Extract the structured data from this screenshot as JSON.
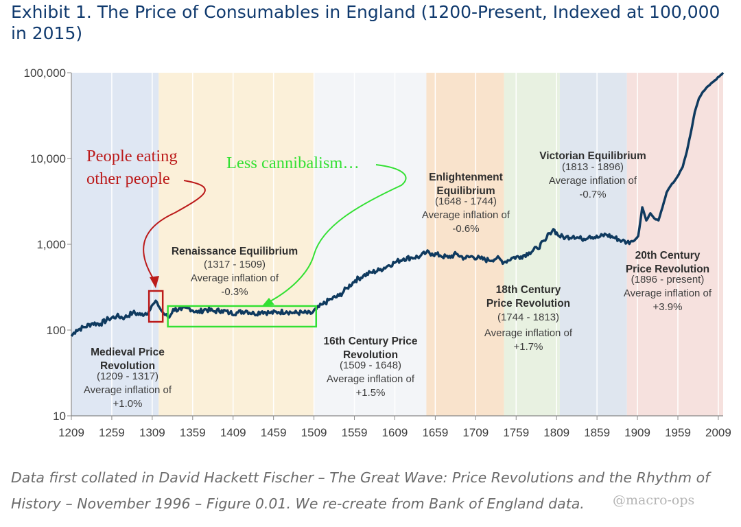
{
  "title": "Exhibit 1. The Price of Consumables in England (1200-Present, Indexed at 100,000 in 2015)",
  "caption": "Data first collated in David Hackett Fischer – The Great Wave: Price Revolutions and the Rhythm of History – November 1996 – Figure 0.01. We re-create from Bank of England data.",
  "watermark": "@macro-ops",
  "colors": {
    "line": "#0f3a5f",
    "annotation_red": "#bb1a1a",
    "annotation_green": "#33e033",
    "title": "#103a6e"
  },
  "chart_data": {
    "type": "line",
    "title": "",
    "xlabel": "",
    "ylabel": "",
    "yscale": "log",
    "xlim": [
      1209,
      2015
    ],
    "ylim": [
      10,
      100000
    ],
    "x_ticks": [
      "1209",
      "1259",
      "1309",
      "1359",
      "1409",
      "1459",
      "1509",
      "1559",
      "1609",
      "1659",
      "1709",
      "1759",
      "1809",
      "1859",
      "1909",
      "1959",
      "2009"
    ],
    "y_ticks": [
      "100,000",
      "10,000",
      "1,000",
      "100",
      "10"
    ],
    "series": [
      {
        "x": [
          1209,
          1215,
          1225,
          1235,
          1245,
          1255,
          1265,
          1275,
          1285,
          1295,
          1305,
          1310,
          1315,
          1320,
          1325,
          1330,
          1335,
          1345,
          1355,
          1365,
          1375,
          1385,
          1395,
          1405,
          1415,
          1425,
          1435,
          1445,
          1455,
          1465,
          1475,
          1485,
          1495,
          1505,
          1512,
          1520,
          1530,
          1540,
          1550,
          1560,
          1570,
          1580,
          1590,
          1600,
          1610,
          1620,
          1630,
          1640,
          1648,
          1655,
          1665,
          1675,
          1685,
          1695,
          1705,
          1715,
          1725,
          1735,
          1744,
          1755,
          1765,
          1775,
          1785,
          1795,
          1800,
          1805,
          1812,
          1820,
          1830,
          1840,
          1850,
          1860,
          1870,
          1880,
          1890,
          1896,
          1905,
          1910,
          1915,
          1920,
          1925,
          1930,
          1935,
          1940,
          1945,
          1950,
          1955,
          1960,
          1965,
          1970,
          1975,
          1980,
          1985,
          1990,
          1995,
          2000,
          2005,
          2010,
          2015
        ],
        "values": [
          85,
          100,
          108,
          120,
          118,
          135,
          145,
          140,
          160,
          150,
          165,
          200,
          210,
          170,
          150,
          140,
          175,
          172,
          180,
          160,
          175,
          165,
          170,
          158,
          160,
          168,
          155,
          165,
          158,
          162,
          165,
          158,
          160,
          155,
          175,
          200,
          230,
          250,
          310,
          380,
          430,
          470,
          500,
          560,
          620,
          680,
          700,
          720,
          800,
          780,
          740,
          700,
          770,
          690,
          720,
          680,
          650,
          690,
          620,
          700,
          720,
          800,
          900,
          1100,
          1350,
          1500,
          1250,
          1200,
          1250,
          1150,
          1250,
          1200,
          1300,
          1200,
          1100,
          1050,
          1100,
          1250,
          2700,
          1900,
          2300,
          2000,
          1900,
          2700,
          4000,
          4800,
          5500,
          6500,
          8000,
          12000,
          20000,
          35000,
          50000,
          60000,
          68000,
          75000,
          82000,
          90000,
          100000
        ]
      }
    ],
    "eras": [
      {
        "name": "Medieval Price Revolution",
        "years": "(1209 - 1317)",
        "inflation": "Average inflation of +1.0%",
        "start": 1209,
        "end": 1317,
        "color": "#dfe7f3"
      },
      {
        "name": "Renaissance Equilibrium",
        "years": "(1317 - 1509)",
        "inflation": "Average inflation of -0.3%",
        "start": 1317,
        "end": 1509,
        "color": "#fbf0d9"
      },
      {
        "name": "16th Century Price Revolution",
        "years": "(1509 - 1648)",
        "inflation": "Average inflation of +1.5%",
        "start": 1509,
        "end": 1648,
        "color": "#f3f5f8"
      },
      {
        "name": "Enlightenment Equilibrium",
        "years": "(1648 - 1744)",
        "inflation": "Average inflation of -0.6%",
        "start": 1648,
        "end": 1744,
        "color": "#f9e3cc"
      },
      {
        "name": "18th Century Price Revolution",
        "years": "(1744 - 1813)",
        "inflation": "Average inflation of +1.7%",
        "start": 1744,
        "end": 1813,
        "color": "#e8f1e1"
      },
      {
        "name": "Victorian Equilibrium",
        "years": "(1813 - 1896)",
        "inflation": "Average inflation of -0.7%",
        "start": 1813,
        "end": 1896,
        "color": "#dfe6ef"
      },
      {
        "name": "20th Century Price Revolution",
        "years": "(1896 - present)",
        "inflation": "Average inflation of +3.9%",
        "start": 1896,
        "end": 2015,
        "color": "#f6e1de"
      }
    ],
    "annotations": [
      {
        "text": "People eating other people",
        "color": "#bb1a1a",
        "box_years": [
          1305,
          1322
        ]
      },
      {
        "text": "Less cannibalism…",
        "color": "#33e033",
        "box_years": [
          1330,
          1510
        ]
      }
    ]
  }
}
